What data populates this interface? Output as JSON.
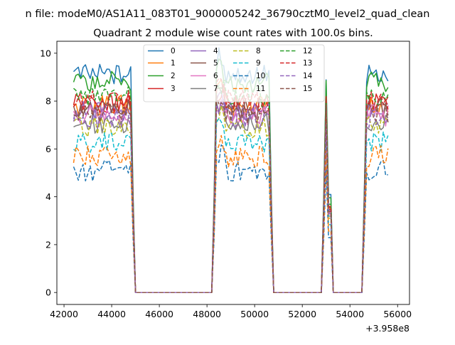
{
  "figure": {
    "suptitle": "n file: modeM0/AS1A11_083T01_9000005242_36790cztM0_level2_quad_clean",
    "axis_offset": "+3.958e8"
  },
  "chart_data": {
    "type": "line",
    "title": "Quadrant 2 module wise count rates with 100.0s bins.",
    "xlabel": "",
    "ylabel": "",
    "xlim": [
      41700,
      56500
    ],
    "ylim": [
      -0.5,
      10.5
    ],
    "x_ticks": [
      42000,
      44000,
      46000,
      48000,
      50000,
      52000,
      54000,
      56000
    ],
    "x_tick_labels": [
      "42000",
      "44000",
      "46000",
      "48000",
      "50000",
      "52000",
      "54000",
      "56000"
    ],
    "y_ticks": [
      0,
      2,
      4,
      6,
      8,
      10
    ],
    "y_tick_labels": [
      "0",
      "2",
      "4",
      "6",
      "8",
      "10"
    ],
    "grid": false,
    "legend": {
      "placement": "top-center",
      "columns": 4
    },
    "segments": [
      {
        "start": 42400,
        "end": 44800
      },
      {
        "start": 48400,
        "end": 50600
      },
      {
        "start": 53000,
        "end": 53000
      },
      {
        "start": 54700,
        "end": 55600
      }
    ],
    "zero_ranges": [
      [
        45000,
        48200
      ],
      [
        50800,
        52800
      ],
      [
        53300,
        54500
      ]
    ],
    "series": [
      {
        "name": "0",
        "color": "#1f77b4",
        "dash": "solid",
        "level": 9.1
      },
      {
        "name": "1",
        "color": "#ff7f0e",
        "dash": "solid",
        "level": 7.8
      },
      {
        "name": "2",
        "color": "#2ca02c",
        "dash": "solid",
        "level": 8.8
      },
      {
        "name": "3",
        "color": "#d62728",
        "dash": "solid",
        "level": 7.9
      },
      {
        "name": "4",
        "color": "#9467bd",
        "dash": "solid",
        "level": 7.6
      },
      {
        "name": "5",
        "color": "#8c564b",
        "dash": "solid",
        "level": 7.7
      },
      {
        "name": "6",
        "color": "#e377c2",
        "dash": "solid",
        "level": 7.4
      },
      {
        "name": "7",
        "color": "#7f7f7f",
        "dash": "solid",
        "level": 7.1
      },
      {
        "name": "8",
        "color": "#bcbd22",
        "dash": "dashed",
        "level": 6.9
      },
      {
        "name": "9",
        "color": "#17becf",
        "dash": "dashed",
        "level": 6.3
      },
      {
        "name": "10",
        "color": "#1f77b4",
        "dash": "dashed",
        "level": 5.1
      },
      {
        "name": "11",
        "color": "#ff7f0e",
        "dash": "dashed",
        "level": 5.7
      },
      {
        "name": "12",
        "color": "#2ca02c",
        "dash": "dashed",
        "level": 8.2
      },
      {
        "name": "13",
        "color": "#d62728",
        "dash": "dashed",
        "level": 8.0
      },
      {
        "name": "14",
        "color": "#9467bd",
        "dash": "dashed",
        "level": 7.3
      },
      {
        "name": "15",
        "color": "#8c564b",
        "dash": "dashed",
        "level": 7.5
      }
    ]
  }
}
